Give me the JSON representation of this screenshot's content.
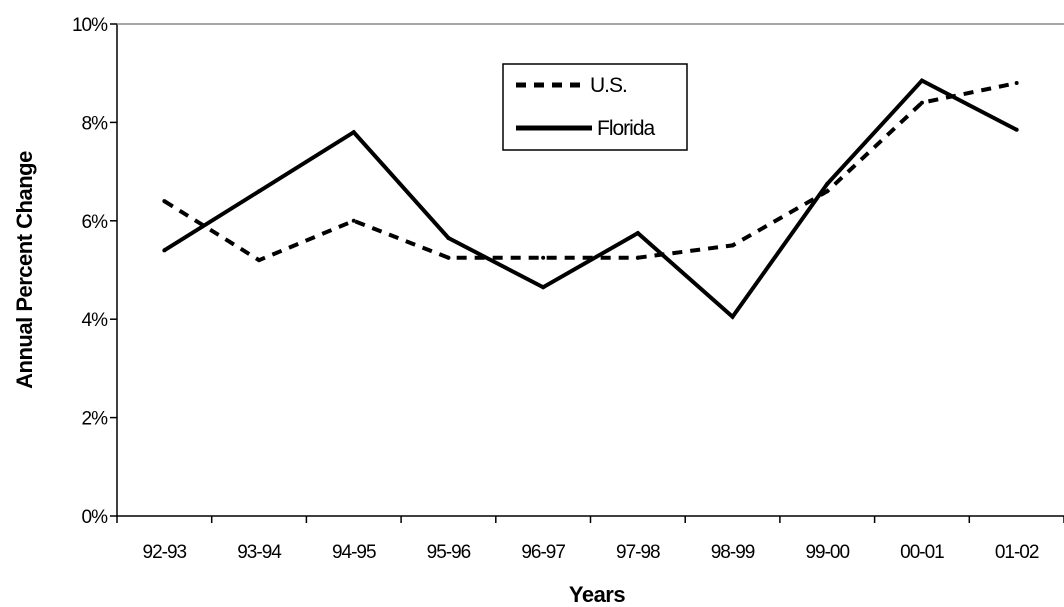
{
  "chart_data": {
    "type": "line",
    "title": "",
    "xlabel": "Years",
    "ylabel": "Annual Percent Change",
    "categories": [
      "92-93",
      "93-94",
      "94-95",
      "95-96",
      "96-97",
      "97-98",
      "98-99",
      "99-00",
      "00-01",
      "01-02"
    ],
    "y_ticks": [
      "0%",
      "2%",
      "4%",
      "6%",
      "8%",
      "10%"
    ],
    "ylim": [
      0,
      10
    ],
    "grid": false,
    "legend_position": "top-center",
    "series": [
      {
        "name": "U.S.",
        "style": "dashed",
        "color": "#000000",
        "values": [
          6.4,
          5.2,
          6.0,
          5.25,
          5.25,
          5.25,
          5.5,
          6.6,
          8.4,
          8.8
        ]
      },
      {
        "name": "Florida",
        "style": "solid",
        "color": "#000000",
        "values": [
          5.4,
          6.6,
          7.8,
          5.65,
          4.65,
          5.75,
          4.05,
          6.75,
          8.85,
          7.85
        ]
      }
    ]
  }
}
